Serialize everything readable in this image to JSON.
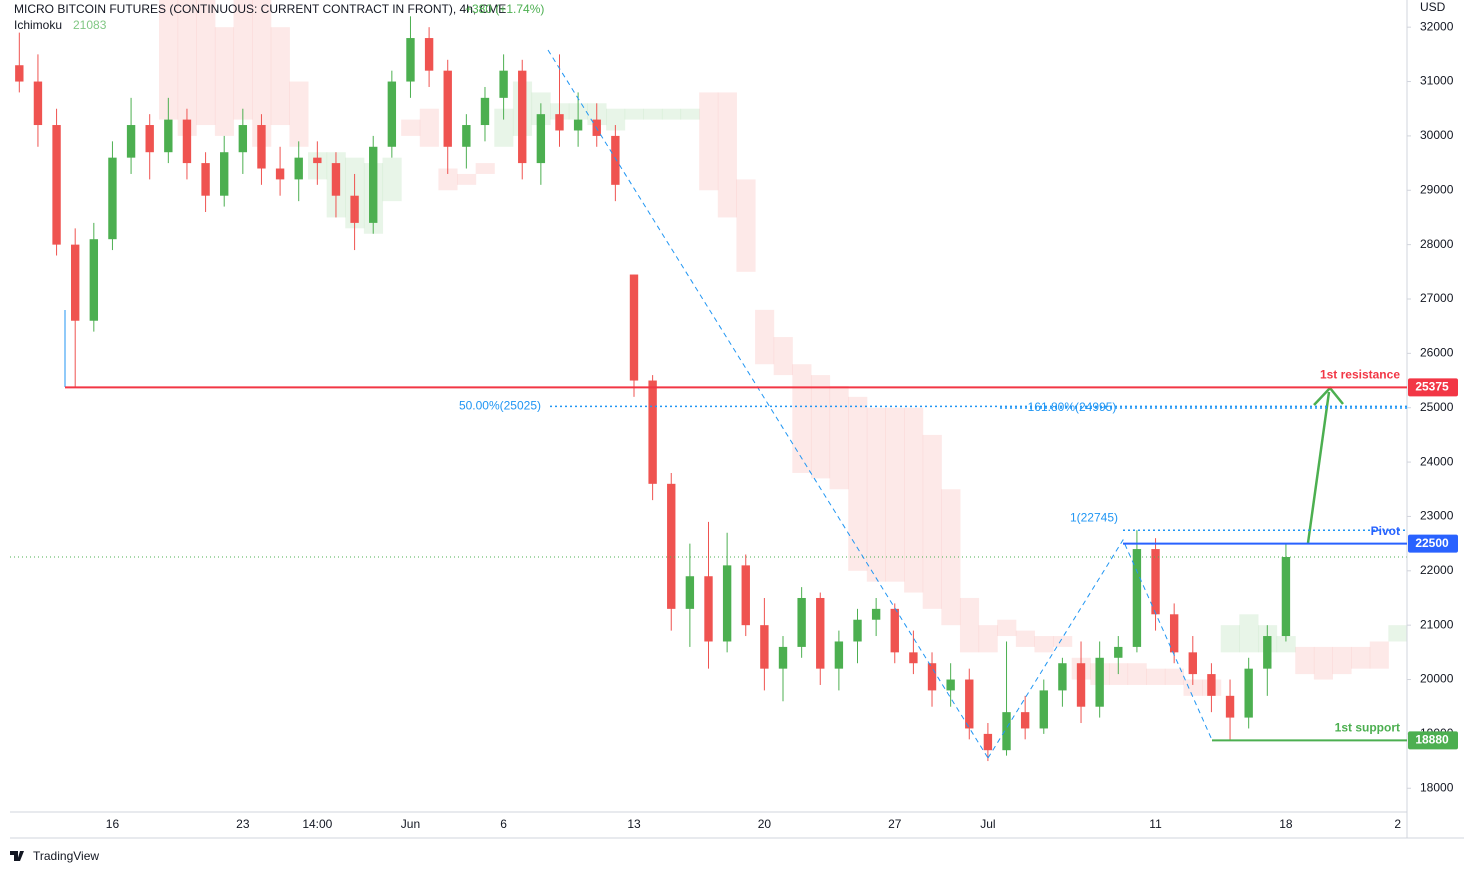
{
  "chart_data": {
    "type": "candlestick",
    "title": "MICRO BITCOIN FUTURES (CONTINUOUS: CURRENT CONTRACT IN FRONT), 4h, CME",
    "change": "+380 (+1.74%)",
    "indicator": "Ichimoku",
    "indicator_value": 21083,
    "currency": "USD",
    "brand": "TradingView",
    "categories": [
      null,
      null,
      null,
      null,
      null,
      "16",
      null,
      null,
      null,
      null,
      null,
      null,
      "23",
      null,
      null,
      null,
      "14:00",
      null,
      null,
      null,
      null,
      "Jun",
      null,
      null,
      null,
      null,
      "6",
      null,
      null,
      null,
      null,
      null,
      null,
      "13",
      null,
      null,
      null,
      null,
      null,
      null,
      "20",
      null,
      null,
      null,
      null,
      null,
      null,
      "27",
      null,
      null,
      null,
      null,
      "Jul",
      null,
      null,
      null,
      null,
      null,
      null,
      null,
      null,
      "11",
      null,
      null,
      null,
      null,
      null,
      null,
      "18",
      null,
      null,
      null,
      null,
      null,
      "2"
    ],
    "open": [
      31300,
      31000,
      30200,
      28000,
      26600,
      28100,
      29600,
      30200,
      29700,
      30300,
      29500,
      28900,
      29700,
      30200,
      29400,
      29200,
      29600,
      29500,
      28900,
      28400,
      29800,
      31000,
      31800,
      31200,
      29800,
      30200,
      30700,
      31200,
      29500,
      30400,
      30100,
      30300,
      30000,
      27450,
      25500,
      23600,
      21300,
      21900,
      20700,
      22100,
      21000,
      20200,
      20600,
      21500,
      20200,
      20700,
      21100,
      21300,
      20500,
      20300,
      19800,
      20000,
      19000,
      18700,
      19400,
      19100,
      19800,
      20300,
      19500,
      20400,
      20600,
      22400,
      21200,
      20500,
      20100,
      19700,
      19300,
      20200,
      20800,
      null,
      null,
      null,
      null,
      null,
      null
    ],
    "high": [
      31900,
      31500,
      30500,
      28300,
      28400,
      29900,
      30700,
      30400,
      30700,
      30500,
      29700,
      30000,
      30500,
      30400,
      29800,
      29900,
      29900,
      29700,
      29300,
      30000,
      31200,
      32200,
      32000,
      31400,
      30400,
      30900,
      31500,
      31400,
      30600,
      31500,
      30800,
      30600,
      30200,
      27450,
      25600,
      23800,
      22500,
      22900,
      22700,
      22300,
      21500,
      20800,
      21700,
      21600,
      20900,
      21300,
      21500,
      21400,
      20900,
      20500,
      20300,
      20200,
      19200,
      20700,
      19700,
      20000,
      20400,
      20700,
      20700,
      20800,
      22745,
      22600,
      21400,
      20800,
      20300,
      20000,
      20400,
      21000,
      22500,
      null,
      null,
      null,
      null,
      null,
      null
    ],
    "low": [
      30800,
      29800,
      27800,
      25375,
      26400,
      27900,
      29300,
      29200,
      29500,
      29200,
      28600,
      28700,
      29300,
      29100,
      28900,
      28800,
      29100,
      28500,
      27900,
      28200,
      29600,
      30700,
      30900,
      29300,
      29400,
      29900,
      30300,
      29200,
      29100,
      29800,
      29800,
      29800,
      28800,
      25200,
      23300,
      20900,
      20600,
      20200,
      20500,
      20800,
      19800,
      19600,
      20400,
      19900,
      19800,
      20300,
      20800,
      20300,
      20100,
      19500,
      19500,
      18900,
      18500,
      18600,
      18900,
      19000,
      19500,
      19200,
      19300,
      20100,
      20500,
      20900,
      20300,
      19900,
      19400,
      18880,
      19100,
      19700,
      20700,
      null,
      null,
      null,
      null,
      null,
      null
    ],
    "close": [
      31000,
      30200,
      28000,
      26600,
      28100,
      29600,
      30200,
      29700,
      30300,
      29500,
      28900,
      29700,
      30200,
      29400,
      29200,
      29600,
      29500,
      28900,
      28400,
      29800,
      31000,
      31800,
      31200,
      29800,
      30200,
      30700,
      31200,
      29500,
      30400,
      30100,
      30300,
      30000,
      29100,
      25500,
      23600,
      21300,
      21900,
      20700,
      22100,
      21000,
      20200,
      20600,
      21500,
      20200,
      20700,
      21100,
      21300,
      20500,
      20300,
      19800,
      20000,
      19100,
      18700,
      19400,
      19100,
      19800,
      20300,
      19500,
      20400,
      20600,
      22400,
      21200,
      20500,
      20100,
      19700,
      19300,
      20200,
      20800,
      22254,
      null,
      null,
      null,
      null,
      null,
      null
    ],
    "up_color": "#4caf50",
    "down_color": "#ef5350",
    "cloud": {
      "span_a": [
        null,
        null,
        null,
        null,
        null,
        null,
        null,
        null,
        30300,
        30000,
        30200,
        30000,
        30300,
        29800,
        30200,
        29800,
        29700,
        29700,
        29600,
        29500,
        29600,
        30000,
        29800,
        29000,
        29100,
        29300,
        30500,
        31000,
        30800,
        30600,
        30600,
        30600,
        30500,
        30500,
        30500,
        30500,
        30500,
        29000,
        28500,
        27500,
        25800,
        25600,
        23800,
        23700,
        23500,
        22000,
        21800,
        21800,
        21600,
        21300,
        21000,
        20500,
        20500,
        20800,
        20600,
        20500,
        20600,
        20000,
        19900,
        19900,
        19900,
        19900,
        19900,
        19700,
        19700,
        21000,
        21200,
        21000,
        20800,
        20100,
        20000,
        20100,
        20200,
        20200,
        21000
      ],
      "span_b": [
        null,
        null,
        null,
        null,
        null,
        null,
        null,
        null,
        32500,
        32500,
        32500,
        32000,
        32500,
        32500,
        32000,
        31000,
        29200,
        28500,
        28300,
        28200,
        28800,
        30300,
        30500,
        29400,
        29300,
        29500,
        29800,
        30000,
        30200,
        30300,
        30300,
        30200,
        30100,
        30300,
        30300,
        30300,
        30300,
        30800,
        30800,
        29200,
        26800,
        26300,
        25800,
        25600,
        25400,
        25200,
        25000,
        25000,
        25000,
        24500,
        23500,
        21500,
        21000,
        21100,
        20900,
        20800,
        20800,
        20400,
        20300,
        20300,
        20300,
        20200,
        20200,
        20000,
        20000,
        20500,
        20500,
        20500,
        20500,
        20600,
        20600,
        20600,
        20600,
        20700,
        20700
      ],
      "up_color": "#4caf50",
      "down_color": "#ef5350"
    },
    "ylim": [
      17600,
      32500
    ],
    "yticks": [
      18000,
      19000,
      20000,
      21000,
      22000,
      23000,
      24000,
      25000,
      26000,
      27000,
      28000,
      29000,
      30000,
      31000,
      32000
    ],
    "levels": [
      {
        "name": "1st resistance",
        "value": 25375,
        "color": "#f23645"
      },
      {
        "name": "Pivot",
        "value": 22500,
        "color": "#2962ff"
      },
      {
        "name": "1st support",
        "value": 18880,
        "color": "#4caf50"
      }
    ],
    "fib": [
      {
        "label": "50.00%(25025)",
        "value": 25025
      },
      {
        "label": "161.80%(24995)",
        "value": 24995
      },
      {
        "label": "1(22745)",
        "value": 22745
      }
    ],
    "grid": false
  }
}
